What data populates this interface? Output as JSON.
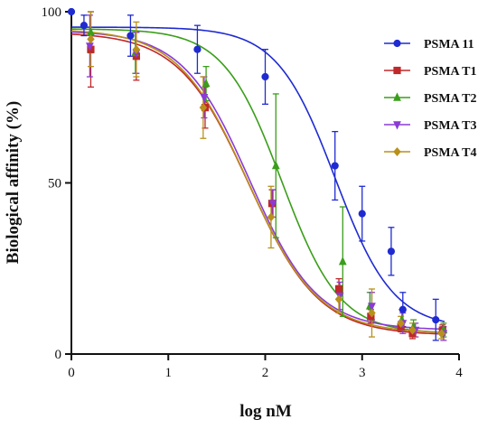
{
  "chart_data": {
    "type": "line",
    "xlabel": "log nM",
    "ylabel": "Biological affinity (%)",
    "xlim": [
      0,
      4
    ],
    "ylim": [
      0,
      100
    ],
    "xticks": [
      "0",
      "1",
      "2",
      "3",
      "4"
    ],
    "yticks": [
      "0",
      "50",
      "100"
    ],
    "grid": false,
    "legend_position": "top-right",
    "series": [
      {
        "name": "PSMA 11",
        "color": "#1f2bd1",
        "marker": "circle",
        "curve": {
          "top": 95.5,
          "bottom": 7.5,
          "logIC50": 2.72,
          "hill": 1.45
        },
        "x": [
          0.0,
          0.13,
          0.61,
          1.3,
          2.0,
          2.72,
          3.0,
          3.3,
          3.42,
          3.76
        ],
        "y": [
          100,
          96,
          93,
          89,
          81,
          55,
          41,
          30,
          13,
          10
        ],
        "err": [
          0,
          3,
          6,
          7,
          8,
          10,
          8,
          7,
          5,
          6
        ]
      },
      {
        "name": "PSMA T1",
        "color": "#c0282a",
        "marker": "square",
        "curve": {
          "top": 94,
          "bottom": 5.5,
          "logIC50": 1.83,
          "hill": 1.2
        },
        "x": [
          0.2,
          0.67,
          1.38,
          2.07,
          2.76,
          3.09,
          3.4,
          3.52,
          3.83
        ],
        "y": [
          89,
          87,
          72,
          44,
          19,
          11,
          8,
          6,
          7
        ],
        "err": [
          11,
          7,
          6,
          4,
          3,
          2,
          1.5,
          1.5,
          1.5
        ]
      },
      {
        "name": "PSMA T2",
        "color": "#3a9e1a",
        "marker": "triangle-up",
        "curve": {
          "top": 95,
          "bottom": 6,
          "logIC50": 2.17,
          "hill": 1.45
        },
        "x": [
          0.2,
          0.66,
          1.39,
          2.11,
          2.8,
          3.08,
          3.41,
          3.53,
          3.84
        ],
        "y": [
          94,
          88,
          79,
          55,
          27,
          14,
          10,
          8,
          7
        ],
        "err": [
          6,
          6,
          5,
          21,
          16,
          4,
          3,
          2,
          2
        ]
      },
      {
        "name": "PSMA T3",
        "color": "#8a3bd6",
        "marker": "triangle-down",
        "curve": {
          "top": 94.5,
          "bottom": 7,
          "logIC50": 1.84,
          "hill": 1.25
        },
        "x": [
          0.19,
          0.67,
          1.37,
          2.08,
          2.77,
          3.1,
          3.42,
          3.55,
          3.84
        ],
        "y": [
          90,
          88,
          75,
          44,
          17,
          14,
          9,
          7,
          6
        ],
        "err": [
          9,
          6,
          6,
          4,
          4,
          4,
          3,
          2,
          2
        ]
      },
      {
        "name": "PSMA T4",
        "color": "#b8901a",
        "marker": "diamond",
        "curve": {
          "top": 95,
          "bottom": 6,
          "logIC50": 1.82,
          "hill": 1.2
        },
        "x": [
          0.2,
          0.67,
          1.36,
          2.06,
          2.76,
          3.1,
          3.4,
          3.52,
          3.82
        ],
        "y": [
          92,
          89,
          72,
          40,
          16,
          12,
          9,
          7,
          6
        ],
        "err": [
          8,
          8,
          9,
          9,
          4,
          7,
          2,
          2,
          1.5
        ]
      }
    ]
  }
}
